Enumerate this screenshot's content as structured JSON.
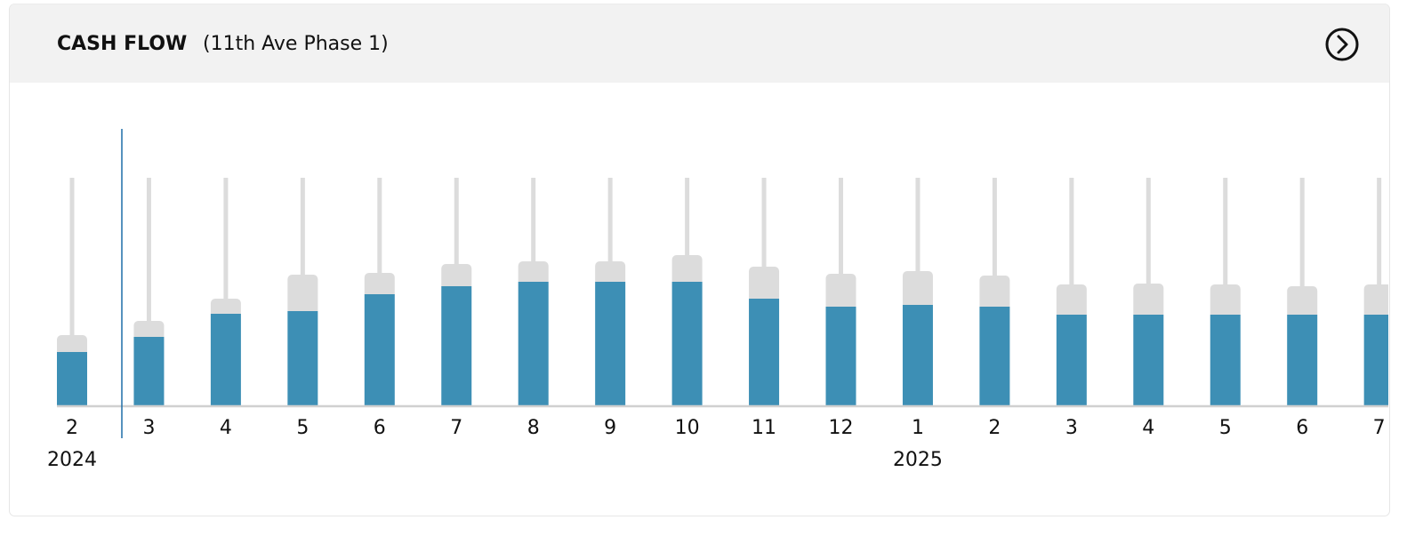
{
  "chart_data": {
    "type": "bar",
    "title": "CASH FLOW",
    "subtitle": "(11th Ave Phase 1)",
    "categories": [
      "2",
      "3",
      "4",
      "5",
      "6",
      "7",
      "8",
      "9",
      "10",
      "11",
      "12",
      "1",
      "2",
      "3",
      "4",
      "5",
      "6",
      "7"
    ],
    "years": [
      "2024",
      null,
      null,
      null,
      null,
      null,
      null,
      null,
      null,
      null,
      null,
      "2025",
      null,
      null,
      null,
      null,
      null,
      null
    ],
    "series": [
      {
        "color": "#3d8fb5",
        "values": [
          60,
          77,
          103,
          106,
          125,
          134,
          139,
          139,
          139,
          120,
          111,
          113,
          111,
          102,
          102,
          102,
          102,
          102
        ]
      },
      {
        "color": "#dcdcdc",
        "values": [
          19,
          18,
          17,
          41,
          24,
          25,
          23,
          23,
          30,
          36,
          37,
          38,
          35,
          34,
          35,
          34,
          32,
          34
        ]
      }
    ],
    "track_color": "#dcdcdc",
    "ylim": [
      0,
      256
    ]
  }
}
